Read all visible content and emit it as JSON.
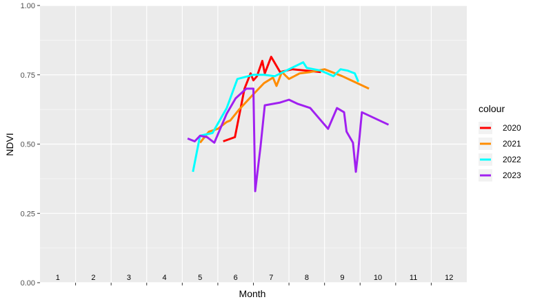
{
  "chart_data": {
    "type": "line",
    "xlabel": "Month",
    "ylabel": "NDVI",
    "xlim": [
      0.5,
      12.5
    ],
    "ylim": [
      0,
      1
    ],
    "y_ticks": [
      "0.00",
      "0.25",
      "0.50",
      "0.75",
      "1.00"
    ],
    "y_tick_values": [
      0,
      0.25,
      0.5,
      0.75,
      1.0
    ],
    "month_labels": [
      "1",
      "2",
      "3",
      "4",
      "5",
      "6",
      "7",
      "8",
      "9",
      "10",
      "11",
      "12"
    ],
    "grid": true,
    "background": "#ebebeb",
    "legend": {
      "title": "colour",
      "position": "right"
    },
    "series": [
      {
        "name": "2020",
        "color": "#ff0000",
        "points": [
          [
            5.65,
            0.51
          ],
          [
            5.98,
            0.525
          ],
          [
            6.25,
            0.7
          ],
          [
            6.42,
            0.755
          ],
          [
            6.5,
            0.73
          ],
          [
            6.6,
            0.745
          ],
          [
            6.75,
            0.8
          ],
          [
            6.82,
            0.755
          ],
          [
            7.0,
            0.815
          ],
          [
            7.25,
            0.76
          ],
          [
            7.6,
            0.77
          ],
          [
            8.0,
            0.765
          ],
          [
            8.4,
            0.76
          ]
        ]
      },
      {
        "name": "2021",
        "color": "#ff8c00",
        "points": [
          [
            5.0,
            0.505
          ],
          [
            5.25,
            0.545
          ],
          [
            5.5,
            0.555
          ],
          [
            5.75,
            0.58
          ],
          [
            5.85,
            0.585
          ],
          [
            6.1,
            0.625
          ],
          [
            6.5,
            0.68
          ],
          [
            6.8,
            0.72
          ],
          [
            7.05,
            0.74
          ],
          [
            7.15,
            0.71
          ],
          [
            7.3,
            0.76
          ],
          [
            7.5,
            0.735
          ],
          [
            7.8,
            0.755
          ],
          [
            8.1,
            0.76
          ],
          [
            8.5,
            0.77
          ],
          [
            9.0,
            0.745
          ],
          [
            9.5,
            0.715
          ],
          [
            9.75,
            0.7
          ]
        ]
      },
      {
        "name": "2022",
        "color": "#00ffff",
        "points": [
          [
            4.8,
            0.4
          ],
          [
            5.0,
            0.53
          ],
          [
            5.35,
            0.54
          ],
          [
            5.75,
            0.63
          ],
          [
            6.05,
            0.735
          ],
          [
            6.5,
            0.75
          ],
          [
            6.8,
            0.75
          ],
          [
            7.1,
            0.745
          ],
          [
            7.5,
            0.77
          ],
          [
            7.9,
            0.795
          ],
          [
            8.0,
            0.775
          ],
          [
            8.4,
            0.765
          ],
          [
            8.75,
            0.745
          ],
          [
            8.95,
            0.77
          ],
          [
            9.15,
            0.765
          ],
          [
            9.35,
            0.755
          ],
          [
            9.45,
            0.725
          ]
        ]
      },
      {
        "name": "2023",
        "color": "#a020f0",
        "points": [
          [
            4.65,
            0.52
          ],
          [
            4.85,
            0.51
          ],
          [
            5.0,
            0.53
          ],
          [
            5.2,
            0.525
          ],
          [
            5.4,
            0.505
          ],
          [
            5.75,
            0.61
          ],
          [
            6.0,
            0.665
          ],
          [
            6.3,
            0.7
          ],
          [
            6.5,
            0.7
          ],
          [
            6.55,
            0.33
          ],
          [
            6.7,
            0.49
          ],
          [
            6.82,
            0.64
          ],
          [
            7.25,
            0.65
          ],
          [
            7.5,
            0.66
          ],
          [
            7.75,
            0.645
          ],
          [
            8.1,
            0.63
          ],
          [
            8.6,
            0.555
          ],
          [
            8.85,
            0.63
          ],
          [
            9.05,
            0.615
          ],
          [
            9.12,
            0.545
          ],
          [
            9.3,
            0.505
          ],
          [
            9.38,
            0.4
          ],
          [
            9.45,
            0.48
          ],
          [
            9.55,
            0.615
          ],
          [
            10.3,
            0.57
          ]
        ]
      }
    ]
  }
}
